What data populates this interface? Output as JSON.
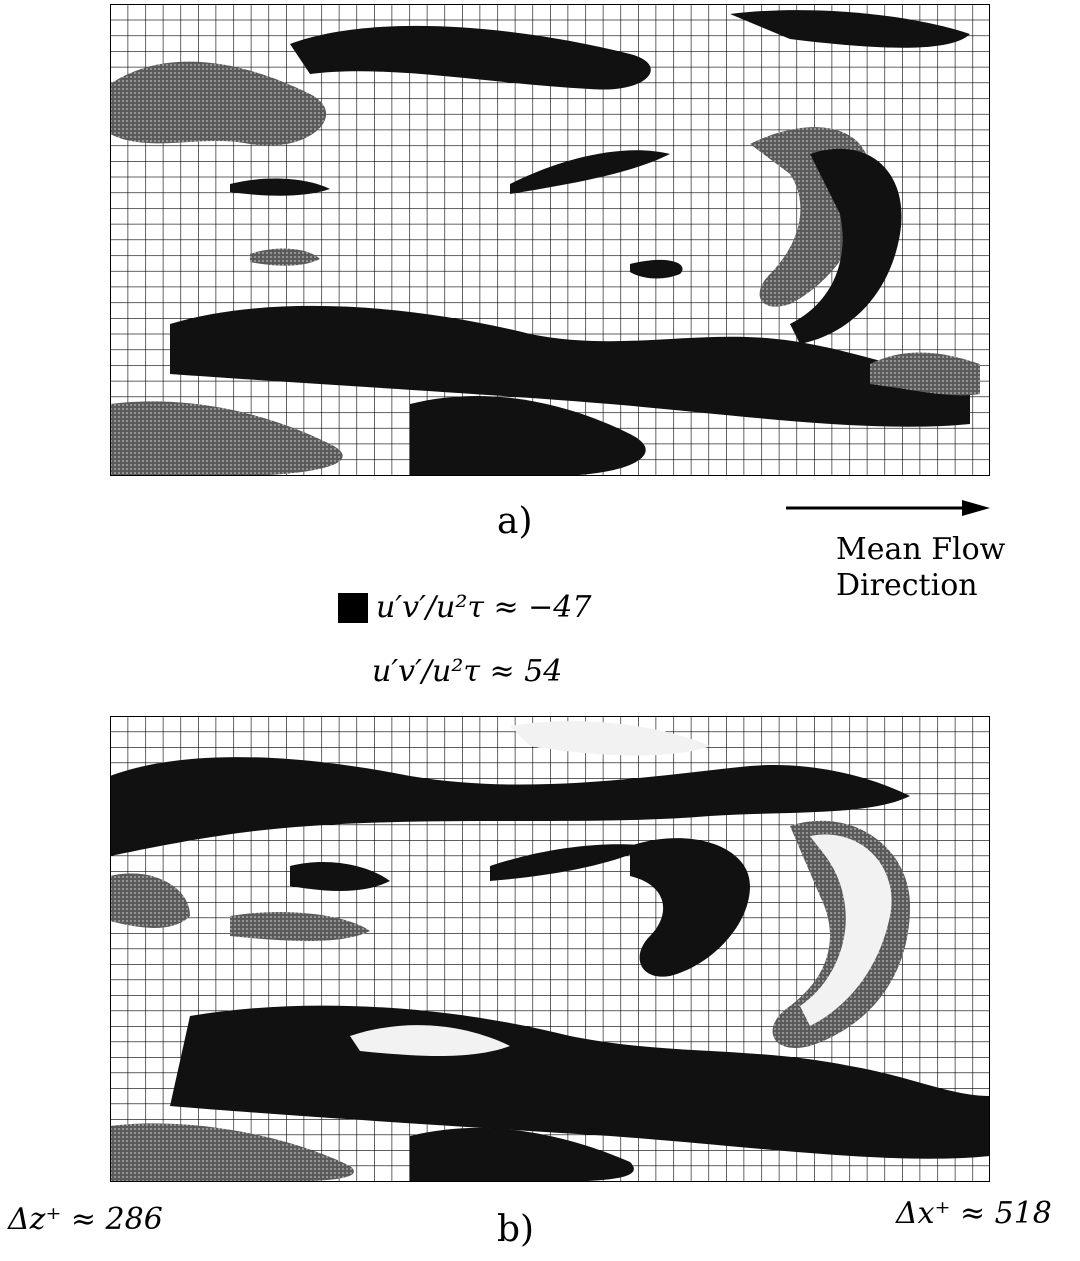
{
  "figure": {
    "panel_a_label": "a)",
    "panel_b_label": "b)",
    "flow_caption_line1": "Mean Flow",
    "flow_caption_line2": "Direction",
    "legend_negative": "u′v′/u²τ ≈ −47",
    "legend_positive": "u′v′/u²τ ≈ 54",
    "delta_z": "Δz⁺ ≈ 286",
    "delta_x": "Δx⁺ ≈ 518"
  },
  "colors": {
    "structure_dark": "#111111",
    "structure_hatched": "#6b6b6b",
    "structure_light": "#f2f2f2",
    "grid": "#000000",
    "background": "#ffffff"
  }
}
